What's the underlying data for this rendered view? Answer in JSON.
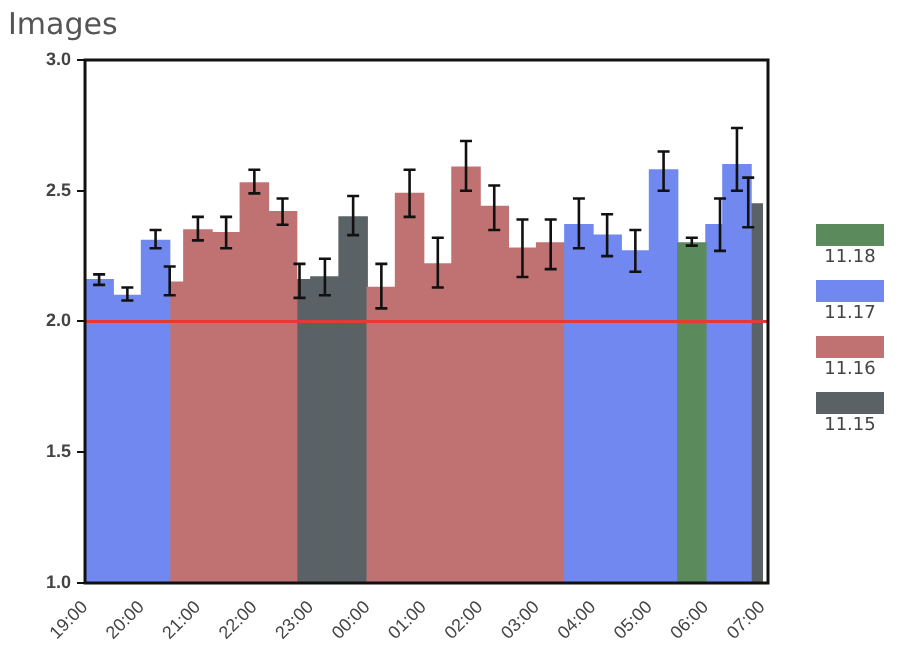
{
  "chart_data": {
    "type": "bar",
    "title": "Images",
    "series": [
      {
        "name": "11.18",
        "color": "#5b8b5d",
        "x": [
          "2000-01-02T05:45"
        ],
        "values": [
          2.3
        ],
        "errors": [
          [
            2.29,
            2.32
          ]
        ]
      },
      {
        "name": "11.17",
        "color": "#7088f0",
        "x": [
          "2000-01-01T19:15",
          "2000-01-01T19:45",
          "2000-01-01T20:15",
          "2000-01-02T03:45",
          "2000-01-02T04:15",
          "2000-01-02T04:45",
          "2000-01-02T05:15",
          "2000-01-02T06:15",
          "2000-01-02T06:33"
        ],
        "values": [
          2.16,
          2.1,
          2.31,
          2.37,
          2.33,
          2.27,
          2.58,
          2.37,
          2.6
        ],
        "errors": [
          [
            2.14,
            2.18
          ],
          [
            2.08,
            2.13
          ],
          [
            2.28,
            2.35
          ],
          [
            2.28,
            2.47
          ],
          [
            2.25,
            2.41
          ],
          [
            2.19,
            2.35
          ],
          [
            2.5,
            2.65
          ],
          [
            2.27,
            2.47
          ],
          [
            2.5,
            2.74
          ]
        ]
      },
      {
        "name": "11.16",
        "color": "#c07272",
        "x": [
          "2000-01-01T20:30",
          "2000-01-01T21:00",
          "2000-01-01T21:30",
          "2000-01-01T22:00",
          "2000-01-01T22:30",
          "2000-01-02T00:15",
          "2000-01-02T00:45",
          "2000-01-02T01:15",
          "2000-01-02T01:45",
          "2000-01-02T02:15",
          "2000-01-02T02:45",
          "2000-01-02T03:15"
        ],
        "values": [
          2.15,
          2.35,
          2.34,
          2.53,
          2.42,
          2.13,
          2.49,
          2.22,
          2.59,
          2.44,
          2.28,
          2.3
        ],
        "errors": [
          [
            2.1,
            2.21
          ],
          [
            2.31,
            2.4
          ],
          [
            2.28,
            2.4
          ],
          [
            2.49,
            2.58
          ],
          [
            2.37,
            2.47
          ],
          [
            2.05,
            2.22
          ],
          [
            2.4,
            2.58
          ],
          [
            2.13,
            2.32
          ],
          [
            2.5,
            2.69
          ],
          [
            2.35,
            2.52
          ],
          [
            2.17,
            2.39
          ],
          [
            2.2,
            2.39
          ]
        ]
      },
      {
        "name": "11.15",
        "color": "#5a6266",
        "x": [
          "2000-01-01T22:48",
          "2000-01-01T23:15",
          "2000-01-01T23:45",
          "2000-01-02T06:45"
        ],
        "values": [
          2.16,
          2.17,
          2.4,
          2.45
        ],
        "errors": [
          [
            2.09,
            2.22
          ],
          [
            2.1,
            2.24
          ],
          [
            2.33,
            2.48
          ],
          [
            2.36,
            2.55
          ]
        ]
      }
    ],
    "xlim": [
      "2000-01-01T19:00",
      "2000-01-02T07:06"
    ],
    "xticks": [
      {
        "value": "2000-01-01T19:00",
        "label": "19:00"
      },
      {
        "value": "2000-01-01T20:00",
        "label": "20:00"
      },
      {
        "value": "2000-01-01T21:00",
        "label": "21:00"
      },
      {
        "value": "2000-01-01T22:00",
        "label": "22:00"
      },
      {
        "value": "2000-01-01T23:00",
        "label": "23:00"
      },
      {
        "value": "2000-01-02T00:00",
        "label": "00:00"
      },
      {
        "value": "2000-01-02T01:00",
        "label": "01:00"
      },
      {
        "value": "2000-01-02T02:00",
        "label": "02:00"
      },
      {
        "value": "2000-01-02T03:00",
        "label": "03:00"
      },
      {
        "value": "2000-01-02T04:00",
        "label": "04:00"
      },
      {
        "value": "2000-01-02T05:00",
        "label": "05:00"
      },
      {
        "value": "2000-01-02T06:00",
        "label": "06:00"
      },
      {
        "value": "2000-01-02T07:00",
        "label": "07:00"
      }
    ],
    "ylim": [
      1,
      3
    ],
    "yticks": [
      {
        "value": 1,
        "label": "1.0"
      },
      {
        "value": 1.5,
        "label": "1.5"
      },
      {
        "value": 2,
        "label": "2.0"
      },
      {
        "value": 2.5,
        "label": "2.5"
      },
      {
        "value": 3,
        "label": "3.0"
      }
    ],
    "ref_lines": [
      {
        "axis": "y",
        "value": 2,
        "color": "#e53935"
      }
    ],
    "grid": false,
    "legend": "right"
  }
}
